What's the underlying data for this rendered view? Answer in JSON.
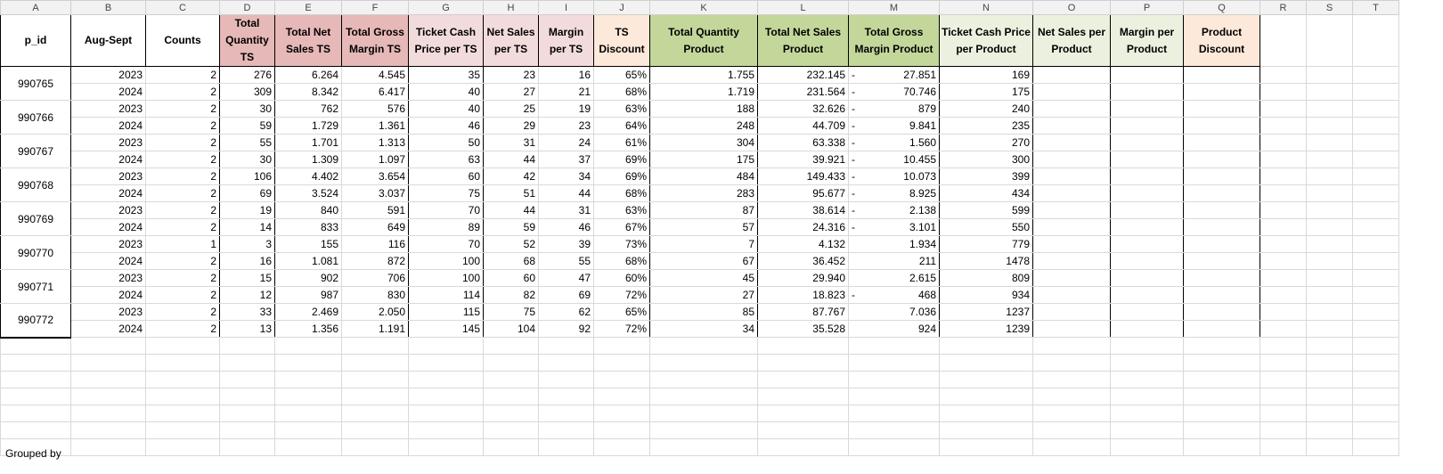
{
  "columns": [
    "A",
    "B",
    "C",
    "D",
    "E",
    "F",
    "G",
    "H",
    "I",
    "J",
    "K",
    "L",
    "M",
    "N",
    "O",
    "P",
    "Q",
    "R",
    "S",
    "T"
  ],
  "headers": [
    "p_id",
    "Aug-Sept",
    "Counts",
    "Total Quantity TS",
    "Total Net Sales TS",
    "Total Gross Margin TS",
    "Ticket Cash Price per TS",
    "Net Sales per TS",
    "Margin per TS",
    "TS Discount",
    "Total Quantity Product",
    "Total Net Sales Product",
    "Total Gross Margin Product",
    "Ticket Cash Price per Product",
    "Net Sales per Product",
    "Margin per Product",
    "Product Discount"
  ],
  "groups": [
    {
      "pid": "990765",
      "rows": [
        {
          "year": "2023",
          "counts": "2",
          "d": "276",
          "e": "6.264",
          "f": "4.545",
          "g": "35",
          "h": "23",
          "i": "16",
          "j": "65%",
          "k": "1.755",
          "l": "232.145",
          "m": "27.851",
          "m_neg": true,
          "n": "169"
        },
        {
          "year": "2024",
          "counts": "2",
          "d": "309",
          "e": "8.342",
          "f": "6.417",
          "g": "40",
          "h": "27",
          "i": "21",
          "j": "68%",
          "k": "1.719",
          "l": "231.564",
          "m": "70.746",
          "m_neg": true,
          "n": "175"
        }
      ]
    },
    {
      "pid": "990766",
      "rows": [
        {
          "year": "2023",
          "counts": "2",
          "d": "30",
          "e": "762",
          "f": "576",
          "g": "40",
          "h": "25",
          "i": "19",
          "j": "63%",
          "k": "188",
          "l": "32.626",
          "m": "879",
          "m_neg": true,
          "n": "240"
        },
        {
          "year": "2024",
          "counts": "2",
          "d": "59",
          "e": "1.729",
          "f": "1.361",
          "g": "46",
          "h": "29",
          "i": "23",
          "j": "64%",
          "k": "248",
          "l": "44.709",
          "m": "9.841",
          "m_neg": true,
          "n": "235"
        }
      ]
    },
    {
      "pid": "990767",
      "rows": [
        {
          "year": "2023",
          "counts": "2",
          "d": "55",
          "e": "1.701",
          "f": "1.313",
          "g": "50",
          "h": "31",
          "i": "24",
          "j": "61%",
          "k": "304",
          "l": "63.338",
          "m": "1.560",
          "m_neg": true,
          "n": "270"
        },
        {
          "year": "2024",
          "counts": "2",
          "d": "30",
          "e": "1.309",
          "f": "1.097",
          "g": "63",
          "h": "44",
          "i": "37",
          "j": "69%",
          "k": "175",
          "l": "39.921",
          "m": "10.455",
          "m_neg": true,
          "n": "300"
        }
      ]
    },
    {
      "pid": "990768",
      "rows": [
        {
          "year": "2023",
          "counts": "2",
          "d": "106",
          "e": "4.402",
          "f": "3.654",
          "g": "60",
          "h": "42",
          "i": "34",
          "j": "69%",
          "k": "484",
          "l": "149.433",
          "m": "10.073",
          "m_neg": true,
          "n": "399"
        },
        {
          "year": "2024",
          "counts": "2",
          "d": "69",
          "e": "3.524",
          "f": "3.037",
          "g": "75",
          "h": "51",
          "i": "44",
          "j": "68%",
          "k": "283",
          "l": "95.677",
          "m": "8.925",
          "m_neg": true,
          "n": "434"
        }
      ]
    },
    {
      "pid": "990769",
      "rows": [
        {
          "year": "2023",
          "counts": "2",
          "d": "19",
          "e": "840",
          "f": "591",
          "g": "70",
          "h": "44",
          "i": "31",
          "j": "63%",
          "k": "87",
          "l": "38.614",
          "m": "2.138",
          "m_neg": true,
          "n": "599"
        },
        {
          "year": "2024",
          "counts": "2",
          "d": "14",
          "e": "833",
          "f": "649",
          "g": "89",
          "h": "59",
          "i": "46",
          "j": "67%",
          "k": "57",
          "l": "24.316",
          "m": "3.101",
          "m_neg": true,
          "n": "550"
        }
      ]
    },
    {
      "pid": "990770",
      "rows": [
        {
          "year": "2023",
          "counts": "1",
          "d": "3",
          "e": "155",
          "f": "116",
          "g": "70",
          "h": "52",
          "i": "39",
          "j": "73%",
          "k": "7",
          "l": "4.132",
          "m": "1.934",
          "m_neg": false,
          "n": "779"
        },
        {
          "year": "2024",
          "counts": "2",
          "d": "16",
          "e": "1.081",
          "f": "872",
          "g": "100",
          "h": "68",
          "i": "55",
          "j": "68%",
          "k": "67",
          "l": "36.452",
          "m": "211",
          "m_neg": false,
          "n": "1478"
        }
      ]
    },
    {
      "pid": "990771",
      "rows": [
        {
          "year": "2023",
          "counts": "2",
          "d": "15",
          "e": "902",
          "f": "706",
          "g": "100",
          "h": "60",
          "i": "47",
          "j": "60%",
          "k": "45",
          "l": "29.940",
          "m": "2.615",
          "m_neg": false,
          "n": "809"
        },
        {
          "year": "2024",
          "counts": "2",
          "d": "12",
          "e": "987",
          "f": "830",
          "g": "114",
          "h": "82",
          "i": "69",
          "j": "72%",
          "k": "27",
          "l": "18.823",
          "m": "468",
          "m_neg": true,
          "n": "934"
        }
      ]
    },
    {
      "pid": "990772",
      "rows": [
        {
          "year": "2023",
          "counts": "2",
          "d": "33",
          "e": "2.469",
          "f": "2.050",
          "g": "115",
          "h": "75",
          "i": "62",
          "j": "65%",
          "k": "85",
          "l": "87.767",
          "m": "7.036",
          "m_neg": false,
          "n": "1237"
        },
        {
          "year": "2024",
          "counts": "2",
          "d": "13",
          "e": "1.356",
          "f": "1.191",
          "g": "145",
          "h": "104",
          "i": "92",
          "j": "72%",
          "k": "34",
          "l": "35.528",
          "m": "924",
          "m_neg": false,
          "n": "1239"
        }
      ]
    }
  ],
  "minus_sign": "-",
  "footer_note": "Grouped by",
  "colors": {
    "salmon": "#e6b8b7",
    "pink": "#f2dcdb",
    "peach": "#fde9d9",
    "green": "#c4d79b",
    "light_green": "#ebf1de",
    "grid": "#d9d9d9"
  }
}
